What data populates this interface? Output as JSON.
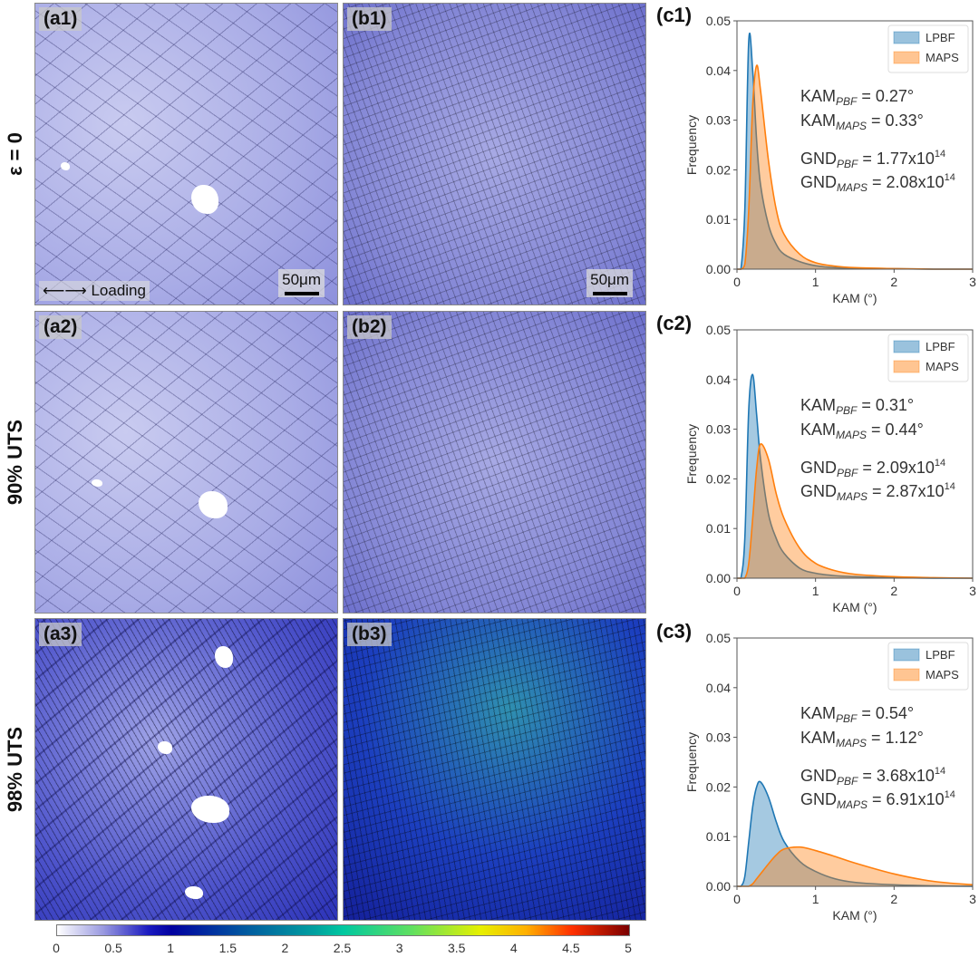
{
  "rows": [
    {
      "label": "ε = 0"
    },
    {
      "label": "90% UTS"
    },
    {
      "label": "98% UTS"
    }
  ],
  "panels": {
    "a1": "(a1)",
    "b1": "(b1)",
    "a2": "(a2)",
    "b2": "(b2)",
    "a3": "(a3)",
    "b3": "(b3)",
    "c1": "(c1)",
    "c2": "(c2)",
    "c3": "(c3)"
  },
  "scale_bar": "50μm",
  "loading_label": "⟵⟶ Loading",
  "colorbar": {
    "ticks": [
      "0",
      "0.5",
      "1",
      "1.5",
      "2",
      "2.5",
      "3",
      "3.5",
      "4",
      "4.5",
      "5"
    ],
    "range": [
      0,
      5
    ]
  },
  "chart_data": [
    {
      "type": "area",
      "panel": "(c1)",
      "xlabel": "KAM (°)",
      "ylabel": "Frequency",
      "xlim": [
        0,
        3
      ],
      "ylim": [
        0,
        0.05
      ],
      "xticks": [
        "0",
        "1",
        "2",
        "3"
      ],
      "yticks": [
        "0.00",
        "0.01",
        "0.02",
        "0.03",
        "0.04",
        "0.05"
      ],
      "legend": "top-right",
      "annotations": {
        "kam_pbf": "0.27°",
        "kam_maps": "0.33°",
        "gnd_pbf": "1.77x10",
        "gnd_maps": "2.08x10",
        "exp": "14"
      },
      "x": [
        0,
        0.05,
        0.1,
        0.15,
        0.2,
        0.25,
        0.3,
        0.4,
        0.5,
        0.6,
        0.8,
        1.0,
        1.25,
        1.5,
        2,
        2.5,
        3
      ],
      "series": [
        {
          "name": "LPBF",
          "color": "#1f77b4",
          "values": [
            0,
            0,
            0.012,
            0.046,
            0.04,
            0.026,
            0.017,
            0.009,
            0.005,
            0.003,
            0.0015,
            0.0007,
            0.0003,
            0.0002,
            0.0001,
            0,
            0
          ]
        },
        {
          "name": "MAPS",
          "color": "#ff7f0e",
          "values": [
            0,
            0,
            0.001,
            0.012,
            0.033,
            0.041,
            0.036,
            0.022,
            0.012,
            0.007,
            0.003,
            0.0013,
            0.0006,
            0.0003,
            0.0001,
            0,
            0
          ]
        }
      ]
    },
    {
      "type": "area",
      "panel": "(c2)",
      "xlabel": "KAM (°)",
      "ylabel": "Frequency",
      "xlim": [
        0,
        3
      ],
      "ylim": [
        0,
        0.05
      ],
      "xticks": [
        "0",
        "1",
        "2",
        "3"
      ],
      "yticks": [
        "0.00",
        "0.01",
        "0.02",
        "0.03",
        "0.04",
        "0.05"
      ],
      "legend": "top-right",
      "annotations": {
        "kam_pbf": "0.31°",
        "kam_maps": "0.44°",
        "gnd_pbf": "2.09x10",
        "gnd_maps": "2.87x10",
        "exp": "14"
      },
      "x": [
        0,
        0.05,
        0.1,
        0.15,
        0.2,
        0.25,
        0.3,
        0.4,
        0.5,
        0.6,
        0.8,
        1.0,
        1.25,
        1.5,
        2,
        2.5,
        3
      ],
      "series": [
        {
          "name": "LPBF",
          "color": "#1f77b4",
          "values": [
            0,
            0,
            0.008,
            0.034,
            0.041,
            0.033,
            0.024,
            0.013,
            0.008,
            0.005,
            0.002,
            0.001,
            0.0005,
            0.0003,
            0.0001,
            0,
            0
          ]
        },
        {
          "name": "MAPS",
          "color": "#ff7f0e",
          "values": [
            0,
            0,
            0,
            0.003,
            0.012,
            0.022,
            0.027,
            0.024,
            0.017,
            0.012,
            0.006,
            0.003,
            0.0015,
            0.0008,
            0.0003,
            0.0001,
            0
          ]
        }
      ]
    },
    {
      "type": "area",
      "panel": "(c3)",
      "xlabel": "KAM (°)",
      "ylabel": "Frequency",
      "xlim": [
        0,
        3
      ],
      "ylim": [
        0,
        0.05
      ],
      "xticks": [
        "0",
        "1",
        "2",
        "3"
      ],
      "yticks": [
        "0.00",
        "0.01",
        "0.02",
        "0.03",
        "0.04",
        "0.05"
      ],
      "legend": "top-right",
      "annotations": {
        "kam_pbf": "0.54°",
        "kam_maps": "1.12°",
        "gnd_pbf": "3.68x10",
        "gnd_maps": "6.91x10",
        "exp": "14"
      },
      "x": [
        0,
        0.05,
        0.1,
        0.15,
        0.2,
        0.25,
        0.3,
        0.4,
        0.5,
        0.6,
        0.8,
        1.0,
        1.25,
        1.5,
        2,
        2.5,
        3
      ],
      "series": [
        {
          "name": "LPBF",
          "color": "#1f77b4",
          "values": [
            0,
            0,
            0.002,
            0.009,
            0.016,
            0.02,
            0.021,
            0.018,
            0.013,
            0.009,
            0.005,
            0.003,
            0.0015,
            0.0008,
            0.0003,
            0.0001,
            0
          ]
        },
        {
          "name": "MAPS",
          "color": "#ff7f0e",
          "values": [
            0,
            0,
            0,
            0,
            0.0005,
            0.0015,
            0.0025,
            0.0045,
            0.0063,
            0.0075,
            0.0079,
            0.0072,
            0.006,
            0.0047,
            0.0025,
            0.001,
            0.0003
          ]
        }
      ]
    }
  ]
}
